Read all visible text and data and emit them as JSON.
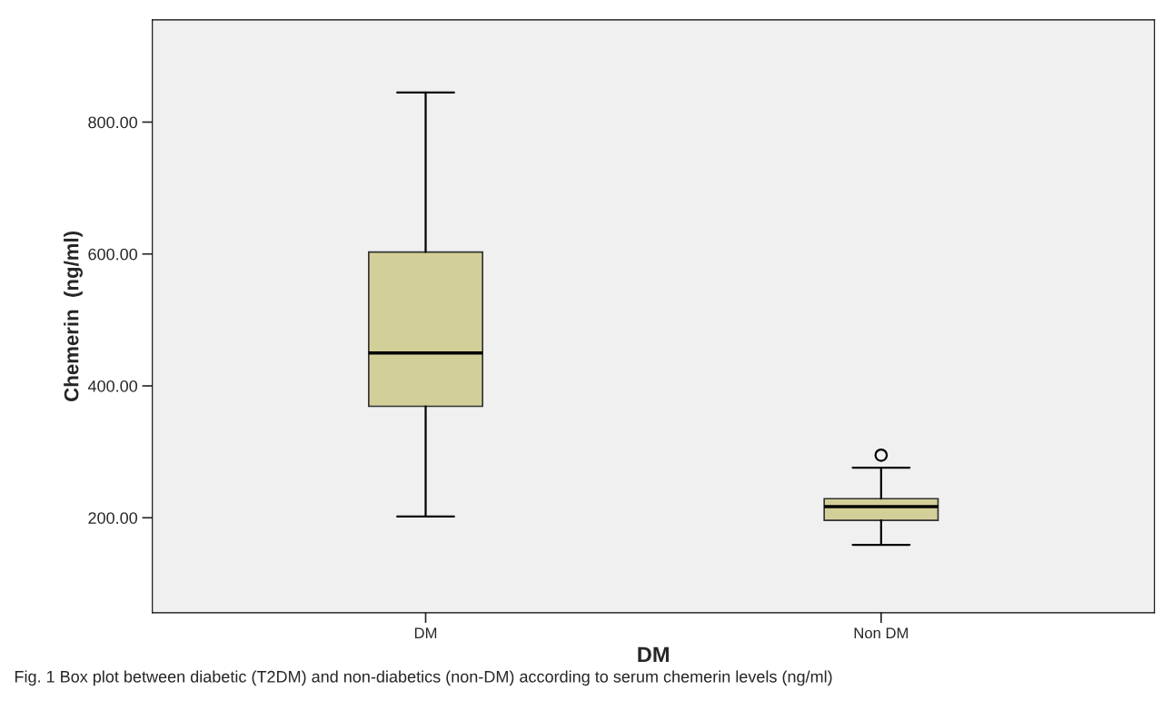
{
  "chart_data": {
    "type": "box",
    "xlabel": "DM",
    "ylabel": "Chemerin  (ng/ml)",
    "categories": [
      "DM",
      "Non DM"
    ],
    "boxes": [
      {
        "low": 202,
        "q1": 369,
        "median": 450,
        "q3": 603,
        "high": 845
      },
      {
        "low": 159,
        "q1": 196,
        "median": 217,
        "q3": 229,
        "high": 276,
        "outliers": [
          295
        ]
      }
    ],
    "color": "#d3cf98",
    "ylim": [
      56,
      955
    ],
    "yticks": [
      {
        "value": 200,
        "label": "200.00"
      },
      {
        "value": 400,
        "label": "400.00"
      },
      {
        "value": 600,
        "label": "600.00"
      },
      {
        "value": 800,
        "label": "800.00"
      }
    ],
    "grid": false,
    "annotations": [
      "Fig. 1 Box plot between diabetic (T2DM) and non-diabetics (non-DM) according to serum chemerin levels (ng/ml)"
    ]
  }
}
